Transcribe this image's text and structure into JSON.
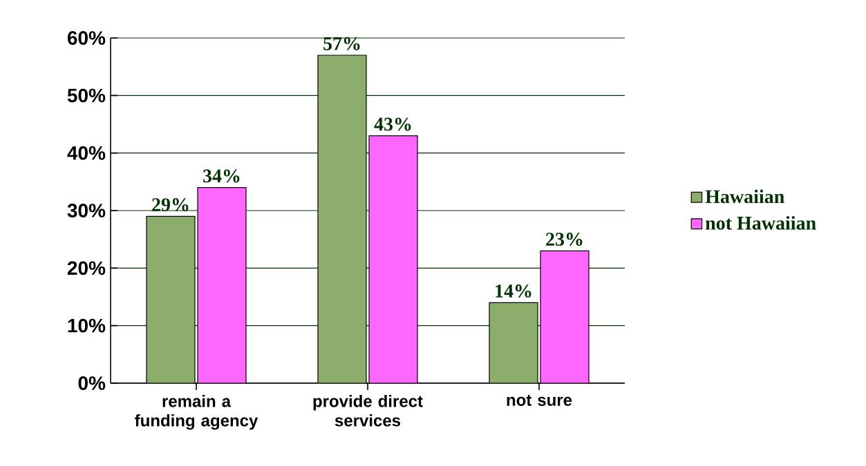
{
  "chart_data": {
    "type": "bar",
    "categories": [
      "remain a funding agency",
      "provide direct services",
      "not sure"
    ],
    "series": [
      {
        "name": "Hawaiian",
        "color": "#8cae6a",
        "values": [
          29,
          57,
          14
        ],
        "value_labels": [
          "29%",
          "57%",
          "14%"
        ]
      },
      {
        "name": "not Hawaiian",
        "color": "#ff66ff",
        "values": [
          34,
          43,
          23
        ],
        "value_labels": [
          "34%",
          "43%",
          "23%"
        ]
      }
    ],
    "ylim": [
      0,
      60
    ],
    "yticks": [
      {
        "value": 0,
        "label": "0%"
      },
      {
        "value": 10,
        "label": "10%"
      },
      {
        "value": 20,
        "label": "20%"
      },
      {
        "value": 30,
        "label": "30%"
      },
      {
        "value": 40,
        "label": "40%"
      },
      {
        "value": 50,
        "label": "50%"
      },
      {
        "value": 60,
        "label": "60%"
      }
    ],
    "grid": "y",
    "legend": "right"
  }
}
